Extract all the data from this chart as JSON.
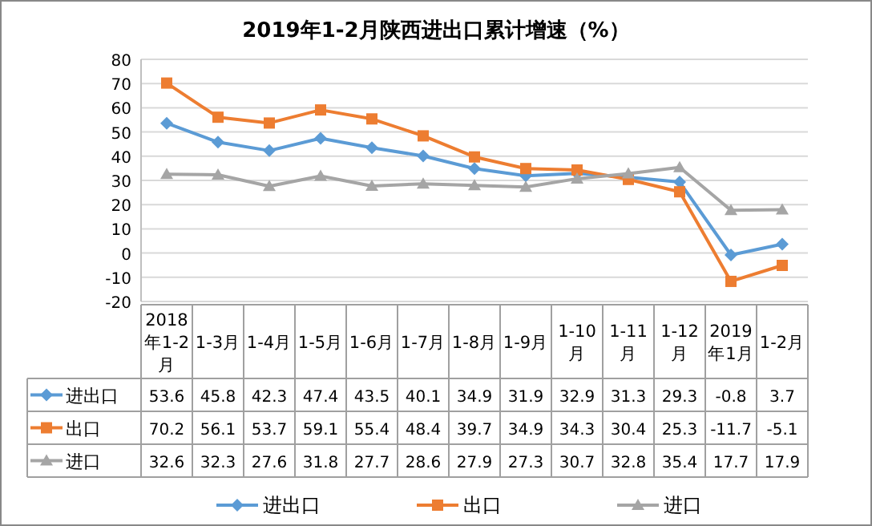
{
  "chart_data": {
    "type": "line",
    "title": "2019年1-2月陕西进出口累计增速（%）",
    "categories": [
      "2018年1-2月",
      "1-3月",
      "1-4月",
      "1-5月",
      "1-6月",
      "1-7月",
      "1-8月",
      "1-9月",
      "1-10月",
      "1-11月",
      "1-12月",
      "2019年1月",
      "1-2月"
    ],
    "series": [
      {
        "name": "进出口",
        "color": "#5b9bd5",
        "marker": "diamond",
        "values": [
          53.6,
          45.8,
          42.3,
          47.4,
          43.5,
          40.1,
          34.9,
          31.9,
          32.9,
          31.3,
          29.3,
          -0.8,
          3.7
        ]
      },
      {
        "name": "出口",
        "color": "#ed7d31",
        "marker": "square",
        "values": [
          70.2,
          56.1,
          53.7,
          59.1,
          55.4,
          48.4,
          39.7,
          34.9,
          34.3,
          30.4,
          25.3,
          -11.7,
          -5.1
        ]
      },
      {
        "name": "进口",
        "color": "#a5a5a5",
        "marker": "triangle",
        "values": [
          32.6,
          32.3,
          27.6,
          31.8,
          27.7,
          28.6,
          27.9,
          27.3,
          30.7,
          32.8,
          35.4,
          17.7,
          17.9
        ]
      }
    ],
    "ylim": [
      -20,
      80
    ],
    "yticks": [
      -20,
      -10,
      0,
      10,
      20,
      30,
      40,
      50,
      60,
      70,
      80
    ],
    "grid": "y",
    "legend": "bottom",
    "data_labels": true,
    "line_style": "solid"
  }
}
